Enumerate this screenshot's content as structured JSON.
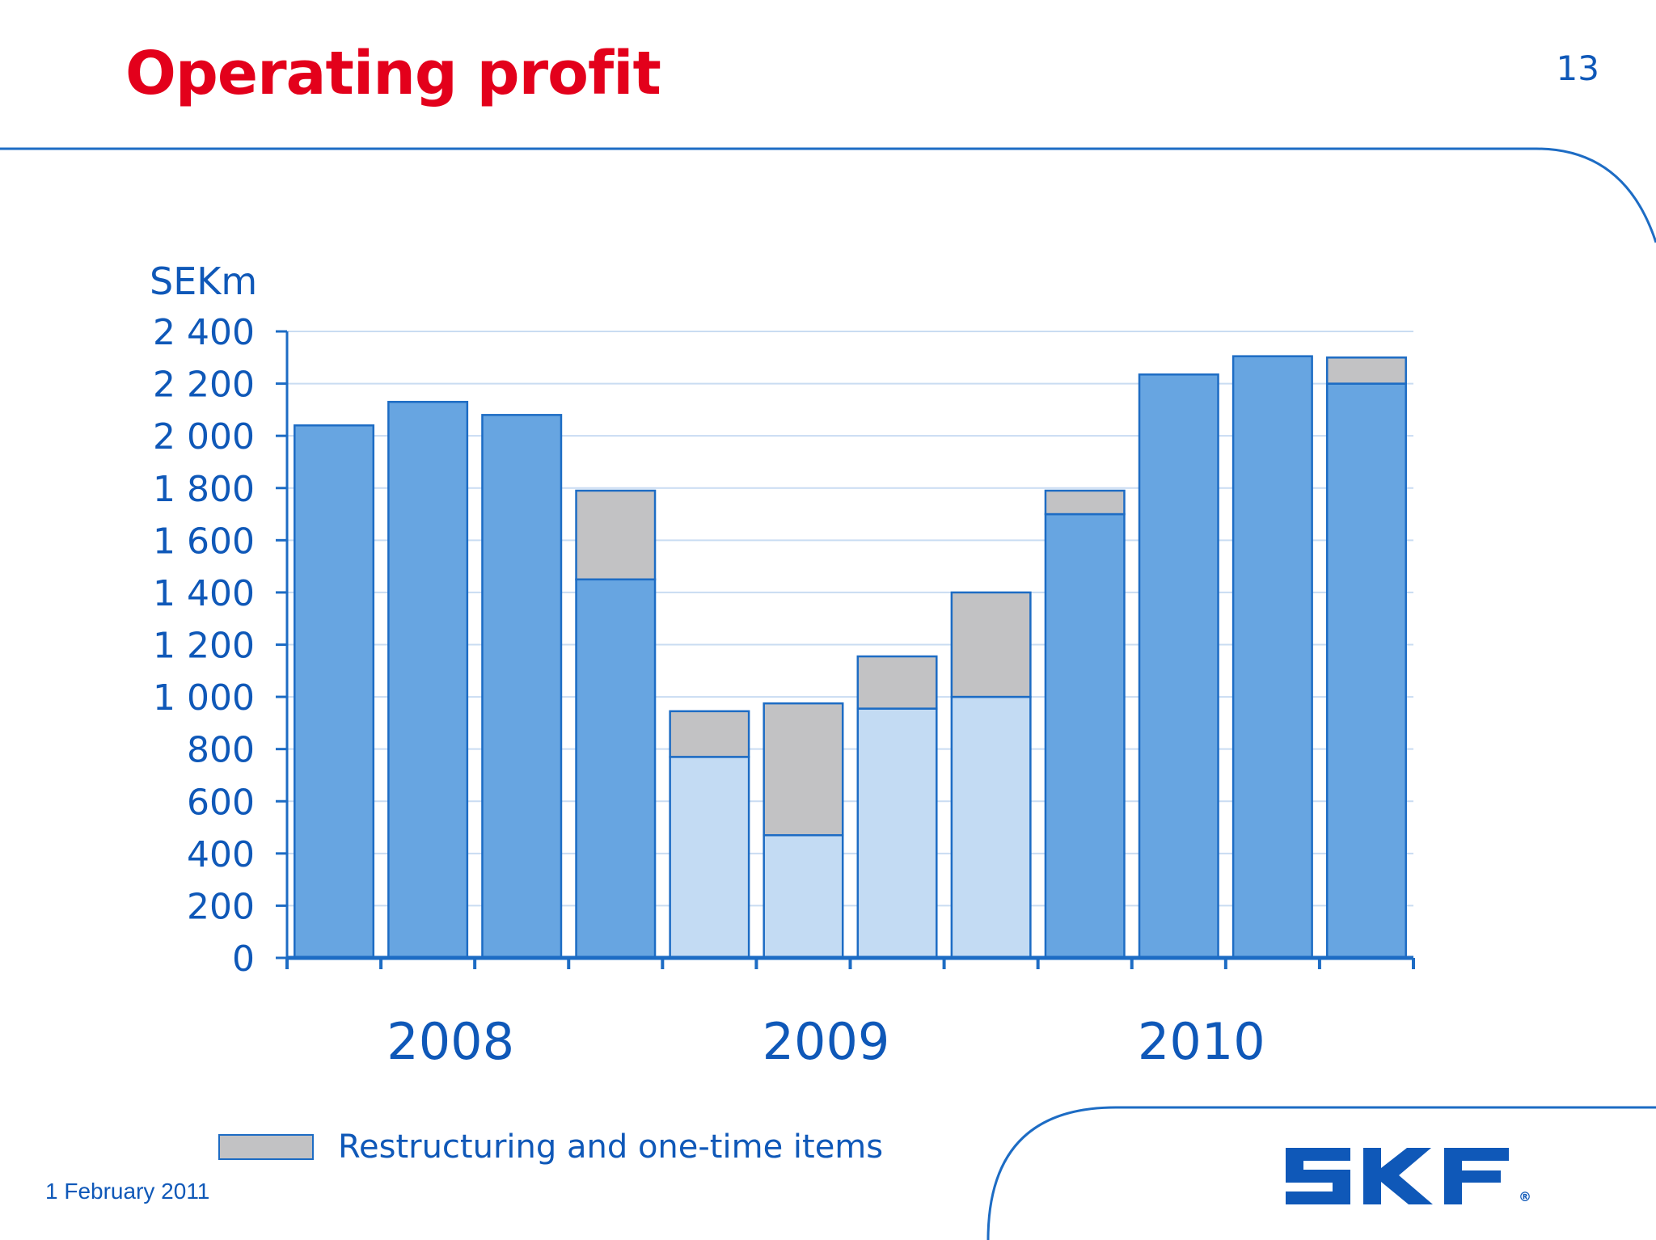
{
  "header": {
    "title": "Operating profit",
    "page_number": "13"
  },
  "footer": {
    "date": "1 February 2011",
    "brand": "SKF",
    "brand_mark": "®"
  },
  "legend": {
    "label": "Restructuring and one-time items"
  },
  "colors": {
    "title": "#e3001b",
    "brand_blue": "#0f58b8",
    "bar_dark": "#67a5e1",
    "bar_light": "#c3dbf3",
    "bar_restructuring": "#c2c2c4",
    "bar_outline": "#1d6cc4",
    "gridline": "#c9dcf2"
  },
  "chart_data": {
    "type": "bar",
    "stacked": true,
    "ylabel": "SEKm",
    "ylim": [
      0,
      2400
    ],
    "ytick_step": 200,
    "yticks": [
      "0",
      "200",
      "400",
      "600",
      "800",
      "1 000",
      "1 200",
      "1 400",
      "1 600",
      "1 800",
      "2 000",
      "2 200",
      "2 400"
    ],
    "grid": true,
    "year_labels": [
      {
        "label": "2008",
        "quarters": [
          0,
          3
        ]
      },
      {
        "label": "2009",
        "quarters": [
          4,
          7
        ]
      },
      {
        "label": "2010",
        "quarters": [
          8,
          11
        ]
      }
    ],
    "categories": [
      "2008 Q1",
      "2008 Q2",
      "2008 Q3",
      "2008 Q4",
      "2009 Q1",
      "2009 Q2",
      "2009 Q3",
      "2009 Q4",
      "2010 Q1",
      "2010 Q2",
      "2010 Q3",
      "2010 Q4"
    ],
    "series": [
      {
        "values": [
          2040,
          2130,
          2080,
          1450,
          770,
          470,
          955,
          1000,
          1700,
          2235,
          2305,
          2200
        ],
        "shade": [
          "dark",
          "dark",
          "dark",
          "dark",
          "light",
          "light",
          "light",
          "light",
          "dark",
          "dark",
          "dark",
          "dark"
        ]
      },
      {
        "name": "Restructuring and one-time items",
        "values": [
          0,
          0,
          0,
          340,
          175,
          505,
          200,
          400,
          90,
          0,
          0,
          100
        ]
      }
    ],
    "legend_position": "bottom-left"
  }
}
